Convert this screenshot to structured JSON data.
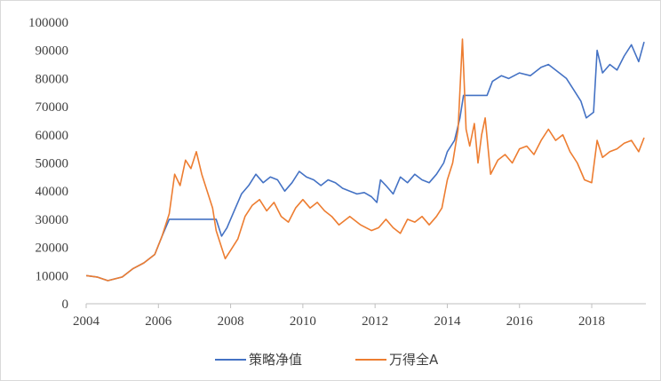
{
  "chart_data": {
    "type": "line",
    "title": "",
    "xlabel": "",
    "ylabel": "",
    "xlim": [
      2004,
      2019.5
    ],
    "ylim": [
      0,
      100000
    ],
    "x_ticks": [
      "2004",
      "2006",
      "2008",
      "2010",
      "2012",
      "2014",
      "2016",
      "2018"
    ],
    "y_ticks": [
      "0",
      "10000",
      "20000",
      "30000",
      "40000",
      "50000",
      "60000",
      "70000",
      "80000",
      "90000",
      "100000"
    ],
    "grid": false,
    "legend": "bottom",
    "series": [
      {
        "name": "策略净值",
        "color": "#4472C4",
        "points": [
          [
            2004.0,
            10000
          ],
          [
            2004.3,
            9500
          ],
          [
            2004.6,
            8200
          ],
          [
            2005.0,
            9500
          ],
          [
            2005.3,
            12500
          ],
          [
            2005.6,
            14500
          ],
          [
            2005.9,
            17500
          ],
          [
            2006.1,
            24000
          ],
          [
            2006.3,
            30000
          ],
          [
            2006.6,
            30000
          ],
          [
            2007.0,
            30000
          ],
          [
            2007.3,
            30000
          ],
          [
            2007.6,
            30000
          ],
          [
            2007.75,
            24000
          ],
          [
            2007.9,
            27000
          ],
          [
            2008.1,
            33000
          ],
          [
            2008.3,
            39000
          ],
          [
            2008.5,
            42000
          ],
          [
            2008.7,
            46000
          ],
          [
            2008.9,
            43000
          ],
          [
            2009.1,
            45000
          ],
          [
            2009.3,
            44000
          ],
          [
            2009.5,
            40000
          ],
          [
            2009.7,
            43000
          ],
          [
            2009.9,
            47000
          ],
          [
            2010.1,
            45000
          ],
          [
            2010.3,
            44000
          ],
          [
            2010.5,
            42000
          ],
          [
            2010.7,
            44000
          ],
          [
            2010.9,
            43000
          ],
          [
            2011.1,
            41000
          ],
          [
            2011.3,
            40000
          ],
          [
            2011.5,
            39000
          ],
          [
            2011.7,
            39500
          ],
          [
            2011.9,
            38000
          ],
          [
            2012.05,
            36000
          ],
          [
            2012.15,
            44000
          ],
          [
            2012.3,
            42000
          ],
          [
            2012.5,
            39000
          ],
          [
            2012.7,
            45000
          ],
          [
            2012.9,
            43000
          ],
          [
            2013.1,
            46000
          ],
          [
            2013.3,
            44000
          ],
          [
            2013.5,
            43000
          ],
          [
            2013.7,
            46000
          ],
          [
            2013.9,
            50000
          ],
          [
            2014.0,
            54000
          ],
          [
            2014.2,
            58000
          ],
          [
            2014.35,
            66000
          ],
          [
            2014.45,
            74000
          ],
          [
            2014.8,
            74000
          ],
          [
            2015.1,
            74000
          ],
          [
            2015.25,
            79000
          ],
          [
            2015.5,
            81000
          ],
          [
            2015.7,
            80000
          ],
          [
            2016.0,
            82000
          ],
          [
            2016.3,
            81000
          ],
          [
            2016.6,
            84000
          ],
          [
            2016.8,
            85000
          ],
          [
            2017.0,
            83000
          ],
          [
            2017.3,
            80000
          ],
          [
            2017.5,
            76000
          ],
          [
            2017.7,
            72000
          ],
          [
            2017.85,
            66000
          ],
          [
            2018.05,
            68000
          ],
          [
            2018.15,
            90000
          ],
          [
            2018.3,
            82000
          ],
          [
            2018.5,
            85000
          ],
          [
            2018.7,
            83000
          ],
          [
            2018.9,
            88000
          ],
          [
            2019.1,
            92000
          ],
          [
            2019.3,
            86000
          ],
          [
            2019.45,
            93000
          ]
        ]
      },
      {
        "name": "万得全A",
        "color": "#ED7D31",
        "points": [
          [
            2004.0,
            10000
          ],
          [
            2004.3,
            9500
          ],
          [
            2004.6,
            8200
          ],
          [
            2005.0,
            9500
          ],
          [
            2005.3,
            12500
          ],
          [
            2005.6,
            14500
          ],
          [
            2005.9,
            17500
          ],
          [
            2006.1,
            24000
          ],
          [
            2006.3,
            32000
          ],
          [
            2006.45,
            46000
          ],
          [
            2006.6,
            42000
          ],
          [
            2006.75,
            51000
          ],
          [
            2006.9,
            48000
          ],
          [
            2007.05,
            54000
          ],
          [
            2007.2,
            46000
          ],
          [
            2007.35,
            40000
          ],
          [
            2007.5,
            34000
          ],
          [
            2007.6,
            26000
          ],
          [
            2007.75,
            20000
          ],
          [
            2007.85,
            16000
          ],
          [
            2008.0,
            19000
          ],
          [
            2008.2,
            23000
          ],
          [
            2008.4,
            31000
          ],
          [
            2008.6,
            35000
          ],
          [
            2008.8,
            37000
          ],
          [
            2009.0,
            33000
          ],
          [
            2009.2,
            36000
          ],
          [
            2009.4,
            31000
          ],
          [
            2009.6,
            29000
          ],
          [
            2009.8,
            34000
          ],
          [
            2010.0,
            37000
          ],
          [
            2010.2,
            34000
          ],
          [
            2010.4,
            36000
          ],
          [
            2010.6,
            33000
          ],
          [
            2010.8,
            31000
          ],
          [
            2011.0,
            28000
          ],
          [
            2011.3,
            31000
          ],
          [
            2011.6,
            28000
          ],
          [
            2011.9,
            26000
          ],
          [
            2012.1,
            27000
          ],
          [
            2012.3,
            30000
          ],
          [
            2012.5,
            27000
          ],
          [
            2012.7,
            25000
          ],
          [
            2012.9,
            30000
          ],
          [
            2013.1,
            29000
          ],
          [
            2013.3,
            31000
          ],
          [
            2013.5,
            28000
          ],
          [
            2013.7,
            31000
          ],
          [
            2013.85,
            34000
          ],
          [
            2014.0,
            44000
          ],
          [
            2014.15,
            50000
          ],
          [
            2014.3,
            62000
          ],
          [
            2014.42,
            94000
          ],
          [
            2014.52,
            62000
          ],
          [
            2014.62,
            56000
          ],
          [
            2014.75,
            64000
          ],
          [
            2014.85,
            50000
          ],
          [
            2014.95,
            60000
          ],
          [
            2015.05,
            66000
          ],
          [
            2015.2,
            46000
          ],
          [
            2015.4,
            51000
          ],
          [
            2015.6,
            53000
          ],
          [
            2015.8,
            50000
          ],
          [
            2016.0,
            55000
          ],
          [
            2016.2,
            56000
          ],
          [
            2016.4,
            53000
          ],
          [
            2016.6,
            58000
          ],
          [
            2016.8,
            62000
          ],
          [
            2017.0,
            58000
          ],
          [
            2017.2,
            60000
          ],
          [
            2017.4,
            54000
          ],
          [
            2017.6,
            50000
          ],
          [
            2017.8,
            44000
          ],
          [
            2018.0,
            43000
          ],
          [
            2018.15,
            58000
          ],
          [
            2018.3,
            52000
          ],
          [
            2018.5,
            54000
          ],
          [
            2018.7,
            55000
          ],
          [
            2018.9,
            57000
          ],
          [
            2019.1,
            58000
          ],
          [
            2019.3,
            54000
          ],
          [
            2019.45,
            59000
          ]
        ]
      }
    ]
  }
}
